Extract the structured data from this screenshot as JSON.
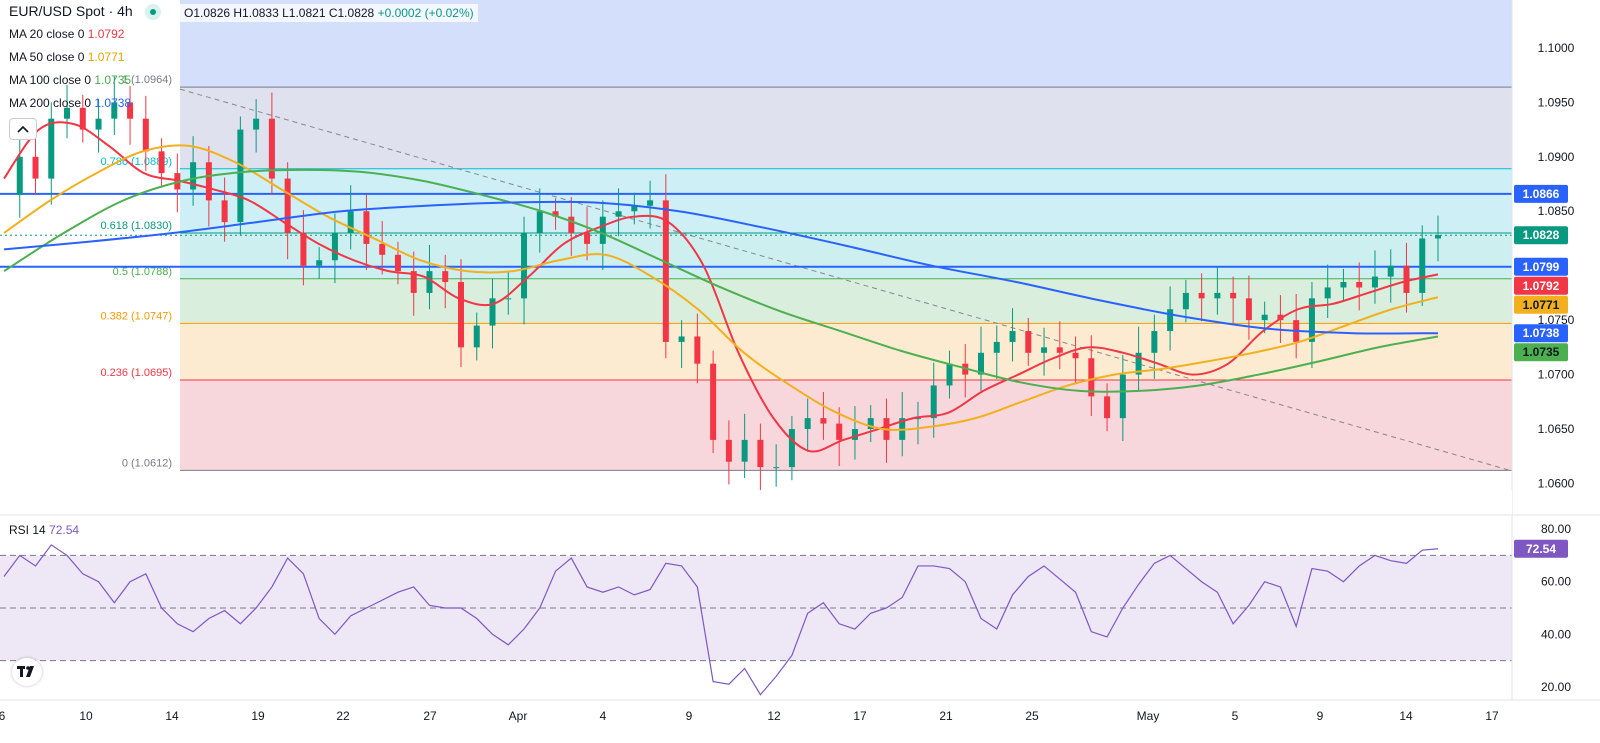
{
  "header": {
    "symbol_title": "EUR/USD Spot · 4h",
    "ohlc": {
      "o": "O1.0826",
      "h": "H1.0833",
      "l": "L1.0821",
      "c": "C1.0828",
      "chg": "+0.0002 (+0.02%)"
    },
    "indicators": [
      {
        "label": "MA 20 close 0",
        "value": "1.0792",
        "color": "#f23645"
      },
      {
        "label": "MA 50 close 0",
        "value": "1.0771",
        "color": "#f2b01e"
      },
      {
        "label": "MA 100 close 0",
        "value": "1.0735",
        "color": "#4caf50"
      },
      {
        "label": "MA 200 close 0",
        "value": "1.0738",
        "color": "#2962ff"
      }
    ],
    "collapse_icon": "chevron-up-icon"
  },
  "rsi_header": {
    "label": "RSI 14",
    "value": "72.54",
    "color": "#7e57c2"
  },
  "chart_data": {
    "type": "candlestick",
    "timeframe": "4h",
    "price_axis": {
      "ylim": [
        1.0594,
        1.1044
      ],
      "ticks": [
        "1.1000",
        "1.0950",
        "1.0900",
        "1.0850",
        "1.0750",
        "1.0700",
        "1.0650",
        "1.0600"
      ]
    },
    "time_axis": {
      "ticks": [
        "6",
        "10",
        "14",
        "19",
        "22",
        "27",
        "Apr",
        "4",
        "9",
        "12",
        "17",
        "21",
        "25",
        "May",
        "5",
        "9",
        "14",
        "17"
      ]
    },
    "price_labels": [
      {
        "value": "1.0866",
        "color": "#2962ff"
      },
      {
        "value": "1.0828",
        "color": "#089981"
      },
      {
        "value": "1.0799",
        "color": "#2962ff"
      },
      {
        "value": "1.0792",
        "color": "#f23645"
      },
      {
        "value": "1.0771",
        "color": "#f2b01e"
      },
      {
        "value": "1.0738",
        "color": "#2962ff"
      },
      {
        "value": "1.0735",
        "color": "#4caf50"
      }
    ],
    "fibonacci": [
      {
        "ratio": "1",
        "label": "1 (1.0964)",
        "price": 1.0964,
        "color": "#787b86",
        "fill": "#dfe2ee"
      },
      {
        "ratio": "0.786",
        "label": "0.786 (1.0889)",
        "price": 1.0889,
        "color": "#00bcd4",
        "fill": "#cdeff5"
      },
      {
        "ratio": "0.618",
        "label": "0.618 (1.0830)",
        "price": 1.083,
        "color": "#089981",
        "fill": "#cdeff0"
      },
      {
        "ratio": "0.5",
        "label": "0.5 (1.0788)",
        "price": 1.0788,
        "color": "#4caf50",
        "fill": "#d9eedc"
      },
      {
        "ratio": "0.382",
        "label": "0.382 (1.0747)",
        "price": 1.0747,
        "color": "#ff9800",
        "fill": "#fcebd0"
      },
      {
        "ratio": "0.236",
        "label": "0.236 (1.0695)",
        "price": 1.0695,
        "color": "#f23645",
        "fill": "#f7d7dc"
      },
      {
        "ratio": "0",
        "label": "0 (1.0612)",
        "price": 1.0612,
        "color": "#787b86",
        "fill": ""
      }
    ],
    "fib_top_fill": "#d4e0fb",
    "horizontal_lines": [
      {
        "price": 1.0866,
        "color": "#2962ff"
      },
      {
        "price": 1.0799,
        "color": "#2962ff"
      }
    ],
    "current_price": 1.0828,
    "trendline": {
      "from": 1.0964,
      "to": 1.0612,
      "color": "#888888"
    },
    "candle_colors": {
      "up": "#089981",
      "down": "#f23645"
    },
    "close_path": [
      1.0865,
      1.09,
      1.088,
      1.0935,
      1.0945,
      1.0925,
      1.0935,
      1.095,
      1.0935,
      1.0905,
      1.0885,
      1.087,
      1.0895,
      1.086,
      1.084,
      1.0925,
      1.0935,
      1.088,
      1.083,
      1.08,
      1.0805,
      1.083,
      1.085,
      1.082,
      1.081,
      1.0795,
      1.0775,
      1.0795,
      1.0785,
      1.0725,
      1.0745,
      1.077,
      1.077,
      1.083,
      1.085,
      1.0845,
      1.083,
      1.082,
      1.0845,
      1.085,
      1.0855,
      1.086,
      1.073,
      1.0735,
      1.071,
      1.064,
      1.062,
      1.064,
      1.0615,
      1.0615,
      1.065,
      1.066,
      1.0655,
      1.064,
      1.065,
      1.066,
      1.064,
      1.066,
      1.066,
      1.069,
      1.071,
      1.07,
      1.072,
      1.073,
      1.074,
      1.072,
      1.0725,
      1.072,
      1.0715,
      1.068,
      1.066,
      1.07,
      1.072,
      1.074,
      1.076,
      1.0775,
      1.077,
      1.0775,
      1.077,
      1.075,
      1.0755,
      1.075,
      1.073,
      1.077,
      1.078,
      1.0785,
      1.078,
      1.079,
      1.08,
      1.0775,
      1.0825,
      1.0828
    ],
    "ma_series": [
      {
        "name": "MA 20",
        "color": "#f23645",
        "values": [
          1.088,
          1.0925,
          1.093,
          1.091,
          1.0885,
          1.0878,
          1.087,
          1.086,
          1.084,
          1.082,
          1.0805,
          1.0795,
          1.079,
          1.077,
          1.0765,
          1.079,
          1.082,
          1.0835,
          1.0845,
          1.084,
          1.08,
          1.072,
          1.066,
          1.063,
          1.064,
          1.065,
          1.066,
          1.0665,
          1.0685,
          1.07,
          1.0715,
          1.0725,
          1.072,
          1.071,
          1.07,
          1.071,
          1.074,
          1.076,
          1.0765,
          1.0775,
          1.0785,
          1.0792
        ]
      },
      {
        "name": "MA 50",
        "color": "#f2b01e",
        "values": [
          1.083,
          1.086,
          1.0885,
          1.0905,
          1.091,
          1.0895,
          1.087,
          1.0845,
          1.0825,
          1.0805,
          1.0795,
          1.0795,
          1.0805,
          1.081,
          1.079,
          1.076,
          1.072,
          1.069,
          1.0665,
          1.065,
          1.0652,
          1.066,
          1.0675,
          1.069,
          1.07,
          1.0705,
          1.0712,
          1.072,
          1.073,
          1.0745,
          1.076,
          1.0771
        ]
      },
      {
        "name": "MA 100",
        "color": "#4caf50",
        "values": [
          1.0795,
          1.083,
          1.086,
          1.0878,
          1.0886,
          1.0888,
          1.0886,
          1.0878,
          1.0865,
          1.085,
          1.083,
          1.0805,
          1.078,
          1.0758,
          1.074,
          1.0722,
          1.0707,
          1.0693,
          1.0685,
          1.0685,
          1.069,
          1.07,
          1.0712,
          1.0725,
          1.0735
        ]
      },
      {
        "name": "MA 200",
        "color": "#2962ff",
        "values": [
          1.0815,
          1.0822,
          1.083,
          1.084,
          1.085,
          1.0855,
          1.0858,
          1.0858,
          1.085,
          1.0835,
          1.0818,
          1.08,
          1.0785,
          1.0768,
          1.0753,
          1.0742,
          1.0738,
          1.0738
        ]
      }
    ],
    "rsi": {
      "ylim": [
        15,
        85
      ],
      "levels": [
        70,
        50,
        30
      ],
      "ticks": [
        "80.00",
        "60.00",
        "40.00",
        "20.00"
      ],
      "current": "72.54",
      "color": "#7e57c2",
      "values": [
        62,
        70,
        66,
        74,
        70,
        63,
        60,
        52,
        60,
        63,
        50,
        44,
        41,
        46,
        49,
        44,
        50,
        58,
        69,
        63,
        46,
        40,
        47,
        50,
        53,
        56,
        58,
        51,
        50,
        50,
        46,
        40,
        36,
        42,
        50,
        64,
        69,
        58,
        56,
        58,
        55,
        57,
        67,
        66,
        58,
        22,
        21,
        27,
        17,
        24,
        32,
        48,
        52,
        44,
        42,
        48,
        50,
        54,
        66,
        66,
        65,
        60,
        46,
        42,
        55,
        62,
        66,
        61,
        56,
        41,
        39,
        50,
        59,
        67,
        70,
        65,
        60,
        56,
        44,
        51,
        60,
        58,
        43,
        65,
        64,
        60,
        66,
        70,
        68,
        67,
        72,
        72.54
      ]
    }
  }
}
